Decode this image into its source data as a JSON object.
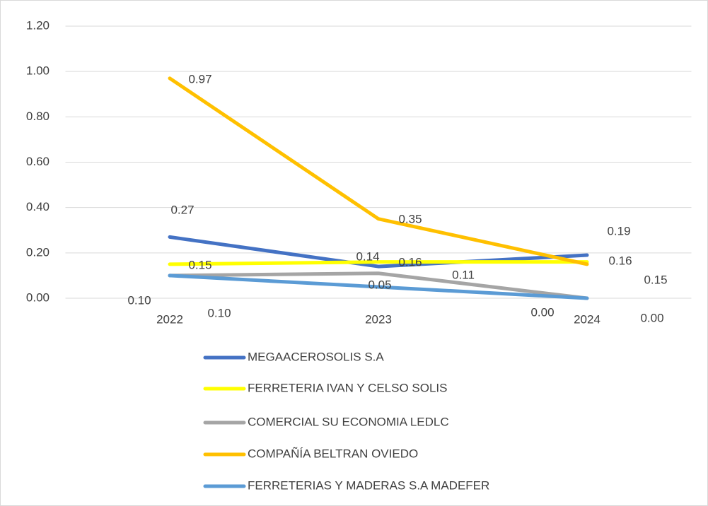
{
  "chart_data": {
    "type": "line",
    "categories": [
      "2022",
      "2023",
      "2024"
    ],
    "series": [
      {
        "name": "MEGAACEROSOLIS S.A",
        "color": "#4472c4",
        "values": [
          0.27,
          0.14,
          0.19
        ]
      },
      {
        "name": "FERRETERIA IVAN Y CELSO SOLIS",
        "color": "#ffff00",
        "values": [
          0.15,
          0.16,
          0.16
        ]
      },
      {
        "name": "COMERCIAL SU ECONOMIA LEDLC",
        "color": "#a5a5a5",
        "values": [
          0.1,
          0.11,
          0
        ],
        "value_labels": [
          "0.10",
          "0.11",
          "0.00"
        ]
      },
      {
        "name": "COMPAÑÍA BELTRAN OVIEDO",
        "color": "#ffc000",
        "values": [
          0.97,
          0.35,
          0.15
        ]
      },
      {
        "name": "FERRETERIAS Y MADERAS S.A MADEFER",
        "color": "#5b9bd5",
        "values": [
          0.1,
          0.05,
          0
        ],
        "value_labels": [
          "0.10",
          "0.05",
          "0.00"
        ]
      }
    ],
    "ylim": [
      0,
      1.2
    ],
    "yticks": [
      {
        "value": 0,
        "label": "0.00"
      },
      {
        "value": 0.2,
        "label": "0.20"
      },
      {
        "value": 0.4,
        "label": "0.40"
      },
      {
        "value": 0.6,
        "label": "0.60"
      },
      {
        "value": 0.8,
        "label": "0.80"
      },
      {
        "value": 1,
        "label": "1.00"
      },
      {
        "value": 1.2,
        "label": "1.20"
      }
    ],
    "grid": true,
    "legend": "bottom"
  }
}
